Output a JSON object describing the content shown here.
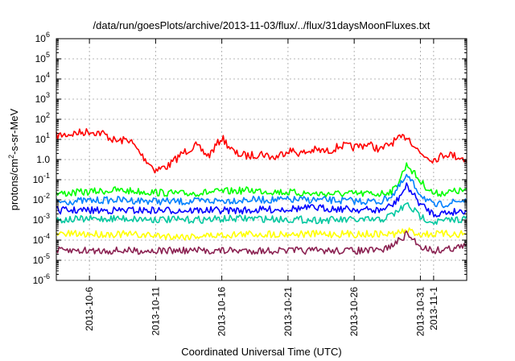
{
  "chart_data": {
    "type": "line",
    "title": "/data/run/goesPlots/archive/2013-11-03/flux/../flux/31daysMoonFluxes.txt",
    "xlabel": "Coordinated Universal Time (UTC)",
    "ylabel_main": "protons/cm",
    "ylabel_sup": "2",
    "ylabel_rest": "-s-sr-MeV",
    "y_scale": "log",
    "ylim": [
      1e-06,
      1000000.0
    ],
    "y_ticks": [
      {
        "base": "10",
        "exp": "-6"
      },
      {
        "base": "10",
        "exp": "-5"
      },
      {
        "base": "10",
        "exp": "-4"
      },
      {
        "base": "10",
        "exp": "-3"
      },
      {
        "base": "10",
        "exp": "-2"
      },
      {
        "base": "10",
        "exp": "-1"
      },
      {
        "base": "1",
        "exp": "",
        "text": "1.0"
      },
      {
        "base": "10",
        "exp": "1"
      },
      {
        "base": "10",
        "exp": "2"
      },
      {
        "base": "10",
        "exp": "3"
      },
      {
        "base": "10",
        "exp": "4"
      },
      {
        "base": "10",
        "exp": "5"
      },
      {
        "base": "10",
        "exp": "6"
      }
    ],
    "x_start": "2013-10-03T12:00",
    "x_end": "2013-11-03T12:00",
    "x_ticks": [
      "2013-10-6",
      "2013-10-11",
      "2013-10-16",
      "2013-10-21",
      "2013-10-26",
      "2013-10-31",
      "2013-11-1"
    ],
    "x_tick_dates": [
      "2013-10-06",
      "2013-10-11",
      "2013-10-16",
      "2013-10-21",
      "2013-10-26",
      "2013-10-31",
      "2013-11-01"
    ],
    "grid": true,
    "series": [
      {
        "color": "#ff0000",
        "x": [
          "2013-10-03T12:00",
          "2013-10-06",
          "2013-10-07",
          "2013-10-08",
          "2013-10-09",
          "2013-10-10",
          "2013-10-11",
          "2013-10-12",
          "2013-10-13",
          "2013-10-14",
          "2013-10-15",
          "2013-10-16",
          "2013-10-17",
          "2013-10-18",
          "2013-10-19",
          "2013-10-20",
          "2013-10-21",
          "2013-10-22",
          "2013-10-23",
          "2013-10-24",
          "2013-10-25",
          "2013-10-26",
          "2013-10-27",
          "2013-10-28",
          "2013-10-29",
          "2013-10-30",
          "2013-10-31",
          "2013-11-01",
          "2013-11-02",
          "2013-11-03T12:00"
        ],
        "values": [
          15,
          25,
          20,
          8,
          10,
          1.5,
          0.3,
          0.5,
          2,
          5,
          1.5,
          12,
          2,
          1.5,
          2,
          1.2,
          3,
          2,
          3,
          2.5,
          5,
          4,
          6,
          3,
          8,
          15,
          2,
          1,
          2,
          1
        ]
      },
      {
        "color": "#00ff00",
        "x": [
          "2013-10-03T12:00",
          "2013-10-08",
          "2013-10-13",
          "2013-10-18",
          "2013-10-23",
          "2013-10-28",
          "2013-10-29",
          "2013-10-30",
          "2013-10-31",
          "2013-11-01",
          "2013-11-03T12:00"
        ],
        "values": [
          0.02,
          0.03,
          0.02,
          0.03,
          0.02,
          0.02,
          0.03,
          0.6,
          0.08,
          0.02,
          0.03
        ]
      },
      {
        "color": "#0080ff",
        "x": [
          "2013-10-03T12:00",
          "2013-10-08",
          "2013-10-13",
          "2013-10-18",
          "2013-10-23",
          "2013-10-28",
          "2013-10-29",
          "2013-10-30",
          "2013-10-31",
          "2013-11-01",
          "2013-11-03T12:00"
        ],
        "values": [
          0.008,
          0.01,
          0.008,
          0.01,
          0.01,
          0.008,
          0.02,
          0.15,
          0.02,
          0.005,
          0.01
        ]
      },
      {
        "color": "#0000ff",
        "x": [
          "2013-10-03T12:00",
          "2013-10-08",
          "2013-10-13",
          "2013-10-18",
          "2013-10-23",
          "2013-10-28",
          "2013-10-29",
          "2013-10-30",
          "2013-10-31",
          "2013-11-01",
          "2013-11-03T12:00"
        ],
        "values": [
          0.003,
          0.003,
          0.003,
          0.003,
          0.004,
          0.003,
          0.006,
          0.05,
          0.006,
          0.002,
          0.003
        ]
      },
      {
        "color": "#00c8a0",
        "x": [
          "2013-10-03T12:00",
          "2013-10-08",
          "2013-10-13",
          "2013-10-18",
          "2013-10-23",
          "2013-10-28",
          "2013-10-29",
          "2013-10-30",
          "2013-10-31",
          "2013-11-01",
          "2013-11-03T12:00"
        ],
        "values": [
          0.001,
          0.0012,
          0.001,
          0.0012,
          0.001,
          0.001,
          0.002,
          0.006,
          0.0015,
          0.0008,
          0.0012
        ]
      },
      {
        "color": "#ffff00",
        "x": [
          "2013-10-03T12:00",
          "2013-10-08",
          "2013-10-13",
          "2013-10-18",
          "2013-10-23",
          "2013-10-28",
          "2013-10-29",
          "2013-10-30",
          "2013-10-31",
          "2013-11-01",
          "2013-11-03T12:00"
        ],
        "values": [
          0.0002,
          0.0002,
          0.00015,
          0.0002,
          0.0002,
          0.0002,
          0.0002,
          0.0003,
          0.0002,
          0.0002,
          0.0002
        ]
      },
      {
        "color": "#8b2252",
        "x": [
          "2013-10-03T12:00",
          "2013-10-08",
          "2013-10-13",
          "2013-10-18",
          "2013-10-23",
          "2013-10-28",
          "2013-10-29",
          "2013-10-30",
          "2013-10-31",
          "2013-11-01",
          "2013-11-03T12:00"
        ],
        "values": [
          3e-05,
          3e-05,
          3e-05,
          3e-05,
          3e-05,
          3e-05,
          6e-05,
          0.0002,
          5e-05,
          3e-05,
          5e-05
        ]
      }
    ]
  }
}
